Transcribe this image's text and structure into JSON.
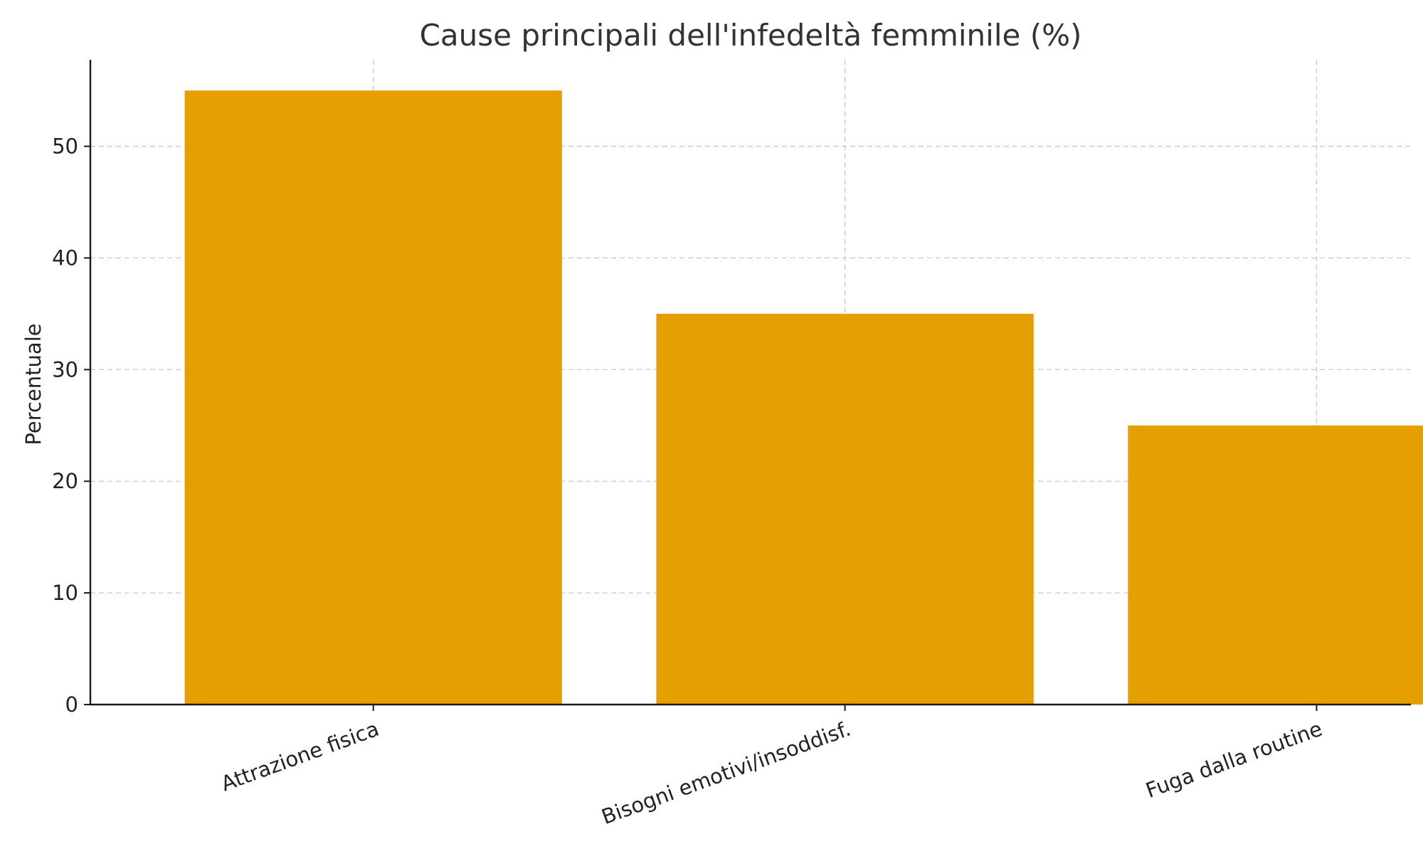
{
  "chart_data": {
    "type": "bar",
    "title": "Cause principali dell'infedeltà femminile (%)",
    "xlabel": "",
    "ylabel": "Percentuale",
    "categories": [
      "Attrazione fisica",
      "Bisogni emotivi/insoddisf.",
      "Fuga dalla routine"
    ],
    "values": [
      55,
      35,
      25
    ],
    "ylim": [
      0,
      57.75
    ],
    "yticks": [
      0,
      10,
      20,
      30,
      40,
      50
    ],
    "bar_color": "#E69F00",
    "grid": true,
    "legend": false
  }
}
